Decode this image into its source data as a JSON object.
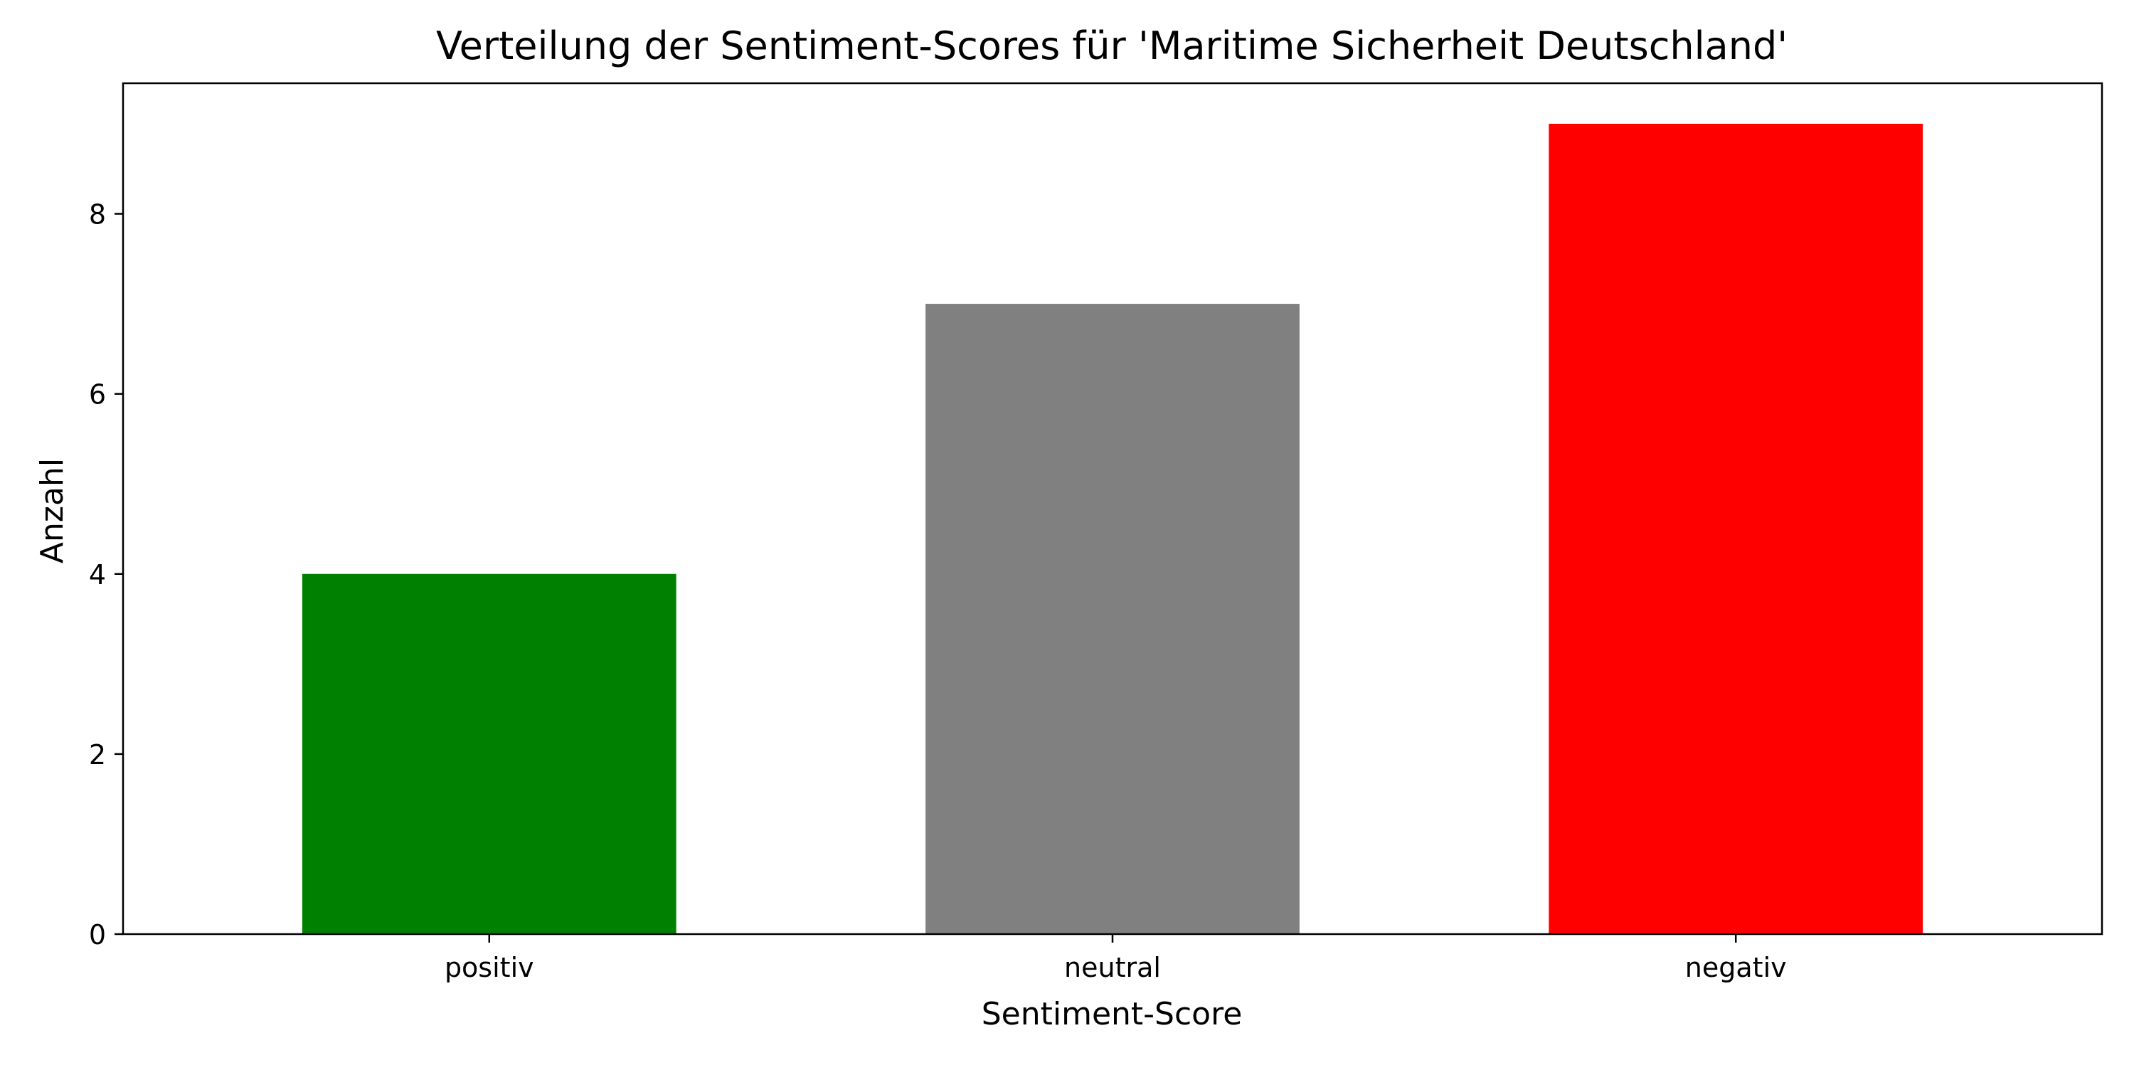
{
  "chart_data": {
    "type": "bar",
    "title": "Verteilung der Sentiment-Scores für 'Maritime Sicherheit Deutschland'",
    "xlabel": "Sentiment-Score",
    "ylabel": "Anzahl",
    "categories": [
      "positiv",
      "neutral",
      "negativ"
    ],
    "values": [
      4,
      7,
      9
    ],
    "colors": [
      "#008000",
      "#808080",
      "#ff0000"
    ],
    "ylim": [
      0,
      9.45
    ],
    "yticks": [
      "0",
      "2",
      "4",
      "6",
      "8"
    ],
    "reference_line": {
      "y": 0,
      "style": "dashed",
      "color": "#555555"
    },
    "grid": false,
    "legend": "none"
  }
}
